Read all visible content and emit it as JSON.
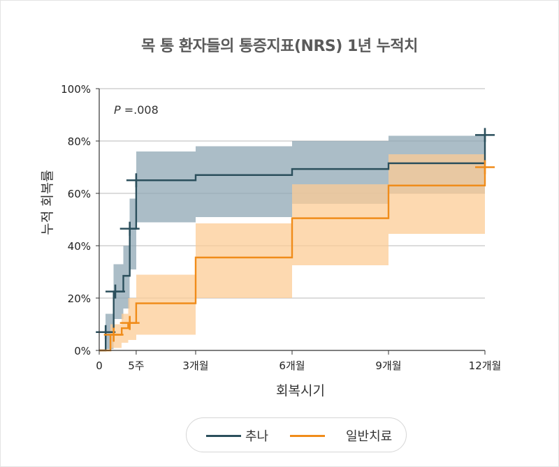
{
  "chart_data": {
    "type": "line",
    "step": true,
    "title": "목 통 환자들의 통증지표(NRS) 1년 누적치",
    "xlabel": "회복시기",
    "ylabel": "누적 회복률",
    "annotation": {
      "p_label": "P",
      "p_value": " =.008"
    },
    "xlim": [
      0,
      12
    ],
    "ylim": [
      0,
      100
    ],
    "x_ticks": [
      {
        "value": 0,
        "label": "0"
      },
      {
        "value": 1.15,
        "label": "5주"
      },
      {
        "value": 3,
        "label": "3개월"
      },
      {
        "value": 6,
        "label": "6개월"
      },
      {
        "value": 9,
        "label": "9개월"
      },
      {
        "value": 12,
        "label": "12개월"
      }
    ],
    "y_ticks": [
      {
        "value": 0,
        "label": "0%"
      },
      {
        "value": 20,
        "label": "20%"
      },
      {
        "value": 40,
        "label": "40%"
      },
      {
        "value": 60,
        "label": "60%"
      },
      {
        "value": 80,
        "label": "80%"
      },
      {
        "value": 100,
        "label": "100%"
      }
    ],
    "grid": true,
    "legend_position": "bottom",
    "series": [
      {
        "name": "추나",
        "color": "#2b4f5c",
        "band_color": "#8fa7b4",
        "steps": [
          [
            0,
            0
          ],
          [
            0.2,
            7
          ],
          [
            0.45,
            22.5
          ],
          [
            0.75,
            28.5
          ],
          [
            0.95,
            46.5
          ],
          [
            1.15,
            65
          ],
          [
            3,
            67
          ],
          [
            6,
            69.3
          ],
          [
            9,
            71.5
          ],
          [
            12,
            82.3
          ]
        ],
        "ci": [
          [
            0,
            0,
            0
          ],
          [
            0.2,
            0.5,
            14
          ],
          [
            0.45,
            12,
            33
          ],
          [
            0.75,
            16,
            40
          ],
          [
            0.95,
            31,
            58
          ],
          [
            1.15,
            49,
            76
          ],
          [
            3,
            51,
            78
          ],
          [
            6,
            56,
            80
          ],
          [
            9,
            60,
            82
          ],
          [
            12,
            60,
            82
          ]
        ],
        "censor": [
          [
            0.2,
            7
          ],
          [
            0.5,
            22.5
          ],
          [
            0.95,
            46.5
          ],
          [
            1.15,
            65
          ],
          [
            12,
            82.3
          ]
        ]
      },
      {
        "name": "일반치료",
        "color": "#f08c1a",
        "band_color": "#fccc96",
        "steps": [
          [
            0,
            0
          ],
          [
            0.35,
            6
          ],
          [
            0.7,
            8.5
          ],
          [
            0.9,
            10.5
          ],
          [
            1.15,
            18
          ],
          [
            3,
            35.5
          ],
          [
            6,
            50.5
          ],
          [
            9,
            63
          ],
          [
            12,
            70
          ]
        ],
        "ci": [
          [
            0,
            0,
            0
          ],
          [
            0.35,
            1,
            10
          ],
          [
            0.7,
            3,
            14
          ],
          [
            0.9,
            4,
            20
          ],
          [
            1.15,
            6,
            29
          ],
          [
            3,
            20,
            48.5
          ],
          [
            6,
            32.5,
            63.5
          ],
          [
            9,
            44.5,
            75
          ],
          [
            12,
            44.5,
            75
          ]
        ],
        "censor": [
          [
            0.45,
            6
          ],
          [
            0.95,
            10.5
          ],
          [
            12,
            70
          ]
        ]
      }
    ]
  }
}
